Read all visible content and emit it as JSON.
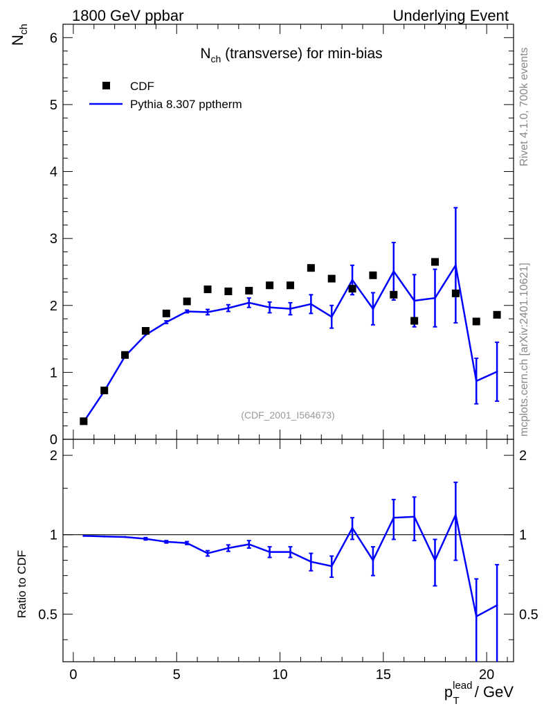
{
  "header": {
    "left": "1800 GeV ppbar",
    "right": "Underlying Event"
  },
  "side_labels": {
    "rivet": "Rivet 4.1.0,  700k events",
    "mcplots": "mcplots.cern.ch [arXiv:2401.10621]"
  },
  "plot_title": {
    "main": "N",
    "sub": "ch",
    "rest": " (transverse) for min-bias"
  },
  "watermark": "(CDF_2001_I564673)",
  "y_label_main": {
    "main": "N",
    "sub": "ch"
  },
  "y_label_ratio": "Ratio to CDF",
  "x_label": {
    "p": "p",
    "sup": "lead",
    "sub": "T",
    "rest": " / GeV"
  },
  "legend": [
    {
      "label": "CDF",
      "kind": "marker"
    },
    {
      "label": "Pythia 8.307 pptherm",
      "kind": "line"
    }
  ],
  "colors": {
    "data": "#000000",
    "mc": "#0000ff",
    "axis": "#000000",
    "side": "#888888",
    "watermark": "#999999"
  },
  "chart_data": [
    {
      "type": "line",
      "panel": "main",
      "xlim": [
        -0.5,
        21.3
      ],
      "ylim": [
        0,
        6.2
      ],
      "xticks": [
        0,
        5,
        10,
        15,
        20
      ],
      "yticks": [
        0,
        1,
        2,
        3,
        4,
        5,
        6
      ],
      "ytick_labels": [
        "0",
        "1",
        "2",
        "3",
        "4",
        "5",
        "6"
      ],
      "series": [
        {
          "name": "CDF",
          "style": "marker",
          "x": [
            0.5,
            1.5,
            2.5,
            3.5,
            4.5,
            5.5,
            6.5,
            7.5,
            8.5,
            9.5,
            10.5,
            11.5,
            12.5,
            13.5,
            14.5,
            15.5,
            16.5,
            17.5,
            18.5,
            19.5,
            20.5
          ],
          "y": [
            0.27,
            0.73,
            1.26,
            1.62,
            1.88,
            2.06,
            2.24,
            2.21,
            2.22,
            2.3,
            2.3,
            2.56,
            2.4,
            2.25,
            2.45,
            2.16,
            1.77,
            2.65,
            2.18,
            1.76,
            1.86
          ]
        },
        {
          "name": "Pythia 8.307 pptherm",
          "style": "line",
          "x": [
            0.5,
            1.5,
            2.5,
            3.5,
            4.5,
            5.5,
            6.5,
            7.5,
            8.5,
            9.5,
            10.5,
            11.5,
            12.5,
            13.5,
            14.5,
            15.5,
            16.5,
            17.5,
            18.5,
            19.5,
            20.5
          ],
          "y": [
            0.26,
            0.72,
            1.24,
            1.56,
            1.75,
            1.91,
            1.9,
            1.96,
            2.04,
            1.97,
            1.95,
            2.02,
            1.83,
            2.38,
            1.95,
            2.51,
            2.07,
            2.11,
            2.6,
            0.87,
            1.01
          ],
          "err": [
            0.0,
            0.0,
            0.0,
            0.01,
            0.02,
            0.02,
            0.04,
            0.05,
            0.07,
            0.08,
            0.09,
            0.14,
            0.17,
            0.22,
            0.24,
            0.43,
            0.39,
            0.43,
            0.86,
            0.34,
            0.44
          ]
        }
      ]
    },
    {
      "type": "line",
      "panel": "ratio",
      "xlim": [
        -0.5,
        21.3
      ],
      "ylim": [
        0.33,
        2.3
      ],
      "xticks": [
        0,
        5,
        10,
        15,
        20
      ],
      "xtick_labels": [
        "0",
        "5",
        "10",
        "15",
        "20"
      ],
      "yticks": [
        0.5,
        1,
        2
      ],
      "ytick_labels": [
        "0.5",
        "1",
        "2"
      ],
      "reference_line": 1,
      "series": [
        {
          "name": "Pythia 8.307 pptherm / CDF",
          "x": [
            0.5,
            1.5,
            2.5,
            3.5,
            4.5,
            5.5,
            6.5,
            7.5,
            8.5,
            9.5,
            10.5,
            11.5,
            12.5,
            13.5,
            14.5,
            15.5,
            16.5,
            17.5,
            18.5,
            19.5,
            20.5
          ],
          "y": [
            0.99,
            0.985,
            0.98,
            0.965,
            0.94,
            0.93,
            0.85,
            0.89,
            0.92,
            0.86,
            0.86,
            0.79,
            0.76,
            1.06,
            0.8,
            1.16,
            1.17,
            0.8,
            1.19,
            0.49,
            0.54
          ],
          "err": [
            0.005,
            0.005,
            0.007,
            0.01,
            0.01,
            0.012,
            0.02,
            0.025,
            0.03,
            0.04,
            0.04,
            0.06,
            0.07,
            0.1,
            0.1,
            0.2,
            0.22,
            0.16,
            0.39,
            0.19,
            0.23
          ]
        }
      ]
    }
  ]
}
